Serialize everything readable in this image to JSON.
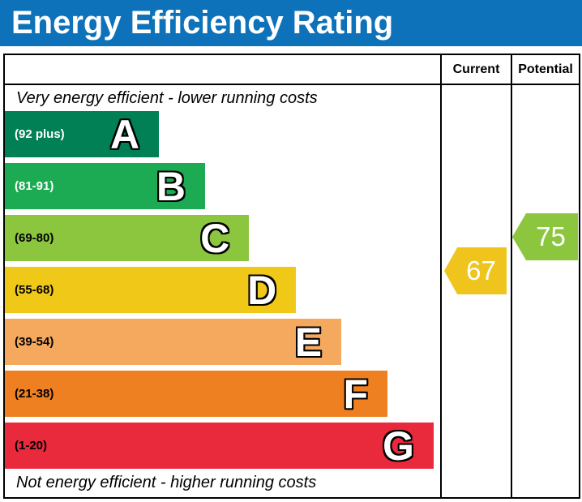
{
  "title": "Energy Efficiency Rating",
  "columns": {
    "current": "Current",
    "potential": "Potential"
  },
  "captions": {
    "top": "Very energy efficient - lower running costs",
    "bottom": "Not energy efficient - higher running costs"
  },
  "colors": {
    "header_blue": "#0d72b9",
    "border": "#000000",
    "current_arrow": "#efc51d",
    "potential_arrow": "#8cc63f"
  },
  "chart_data": {
    "type": "bar",
    "title": "Energy Efficiency Rating",
    "legend_position": "none",
    "scale": {
      "min": 1,
      "max": 100
    },
    "bands": [
      {
        "letter": "A",
        "range": "(92 plus)",
        "range_min": 92,
        "range_max": 100,
        "color": "#008054",
        "label_color": "#ffffff",
        "width_pct": 35.4
      },
      {
        "letter": "B",
        "range": "(81-91)",
        "range_min": 81,
        "range_max": 91,
        "color": "#1caa52",
        "label_color": "#ffffff",
        "width_pct": 46.0
      },
      {
        "letter": "C",
        "range": "(69-80)",
        "range_min": 69,
        "range_max": 80,
        "color": "#8cc63f",
        "label_color": "#000000",
        "width_pct": 56.1
      },
      {
        "letter": "D",
        "range": "(55-68)",
        "range_min": 55,
        "range_max": 68,
        "color": "#f0c818",
        "label_color": "#000000",
        "width_pct": 66.9
      },
      {
        "letter": "E",
        "range": "(39-54)",
        "range_min": 39,
        "range_max": 54,
        "color": "#f5a95f",
        "label_color": "#000000",
        "width_pct": 77.3
      },
      {
        "letter": "F",
        "range": "(21-38)",
        "range_min": 21,
        "range_max": 38,
        "color": "#ee8022",
        "label_color": "#000000",
        "width_pct": 87.9
      },
      {
        "letter": "G",
        "range": "(1-20)",
        "range_min": 1,
        "range_max": 20,
        "color": "#e9293c",
        "label_color": "#000000",
        "width_pct": 98.5
      }
    ],
    "current": {
      "value": 67,
      "band": "D",
      "color": "#efc51d"
    },
    "potential": {
      "value": 75,
      "band": "C",
      "color": "#8cc63f"
    }
  }
}
